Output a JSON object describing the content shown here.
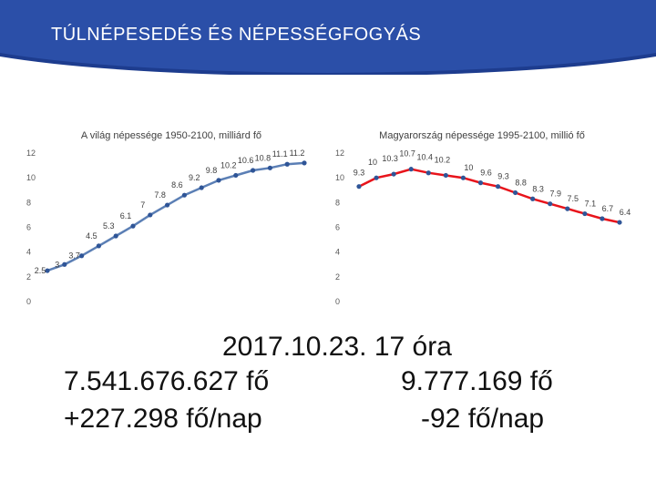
{
  "slide": {
    "title": "TÚLNÉPESEDÉS ÉS NÉPESSÉGFOGYÁS",
    "date_line": "2017.10.23. 17 óra",
    "world_total": "7.541.676.627 fő",
    "world_rate": "+227.298 fő/nap",
    "hu_total": "9.777.169 fő",
    "hu_rate": "-92 fő/nap"
  },
  "colors": {
    "banner": "#2b4fa8",
    "banner_dark": "#1d3c8e",
    "world_line": "#5b7fb5",
    "world_marker": "#2f5597",
    "hu_line": "#e8141b",
    "hu_marker": "#2f5597",
    "axis_text": "#595959"
  },
  "chart_data": [
    {
      "type": "line",
      "title": "A világ népessége 1950-2100, milliárd fő",
      "ylim": [
        0,
        12
      ],
      "yticks": [
        0,
        2,
        4,
        6,
        8,
        10,
        12
      ],
      "grid": false,
      "legend": "none",
      "series": [
        {
          "values": [
            2.5,
            3,
            3.7,
            4.5,
            5.3,
            6.1,
            7,
            7.8,
            8.6,
            9.2,
            9.8,
            10.2,
            10.6,
            10.8,
            11.1,
            11.2
          ]
        }
      ]
    },
    {
      "type": "line",
      "title": "Magyarország népessége 1995-2100, millió fő",
      "ylim": [
        0,
        12
      ],
      "yticks": [
        0,
        2,
        4,
        6,
        8,
        10,
        12
      ],
      "grid": false,
      "legend": "none",
      "series": [
        {
          "values": [
            9.3,
            10,
            10.3,
            10.7,
            10.4,
            10.2,
            10,
            9.6,
            9.3,
            8.8,
            8.3,
            7.9,
            7.5,
            7.1,
            6.7,
            6.4
          ]
        }
      ]
    }
  ]
}
